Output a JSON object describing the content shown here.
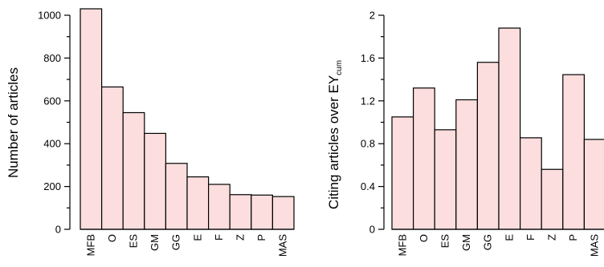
{
  "colors": {
    "bar_fill": "#fcdede",
    "bar_stroke": "#000000"
  },
  "chart_data": [
    {
      "type": "bar",
      "categories": [
        "MFB",
        "O",
        "ES",
        "GM",
        "GG",
        "E",
        "F",
        "Z",
        "P",
        "MAS"
      ],
      "values": [
        1030,
        665,
        545,
        448,
        308,
        245,
        210,
        162,
        160,
        153
      ],
      "ylim": [
        0,
        1000
      ],
      "yticks": [
        0,
        200,
        400,
        600,
        800,
        1000
      ],
      "ytick_labels": [
        "0",
        "200",
        "400",
        "600",
        "800",
        "1000"
      ],
      "minor_yticks": [
        100,
        300,
        500,
        700,
        900
      ],
      "ylabel": "Number of articles",
      "xlabel": "",
      "title": "",
      "grid": false
    },
    {
      "type": "bar",
      "categories": [
        "MFB",
        "O",
        "ES",
        "GM",
        "GG",
        "E",
        "F",
        "Z",
        "P",
        "MAS"
      ],
      "values": [
        1.05,
        1.32,
        0.93,
        1.21,
        1.56,
        1.88,
        0.855,
        0.56,
        1.445,
        0.84
      ],
      "ylim": [
        0,
        2
      ],
      "yticks": [
        0,
        0.4,
        0.8,
        1.2,
        1.6,
        2
      ],
      "ytick_labels": [
        "0",
        "0.4",
        "0.8",
        "1.2",
        "1.6",
        "2"
      ],
      "minor_yticks": [
        0.2,
        0.6,
        1.0,
        1.4,
        1.8
      ],
      "ylabel": "Citing articles over EY",
      "ylabel_subscript": "cum",
      "xlabel": "",
      "title": "",
      "grid": false
    }
  ]
}
